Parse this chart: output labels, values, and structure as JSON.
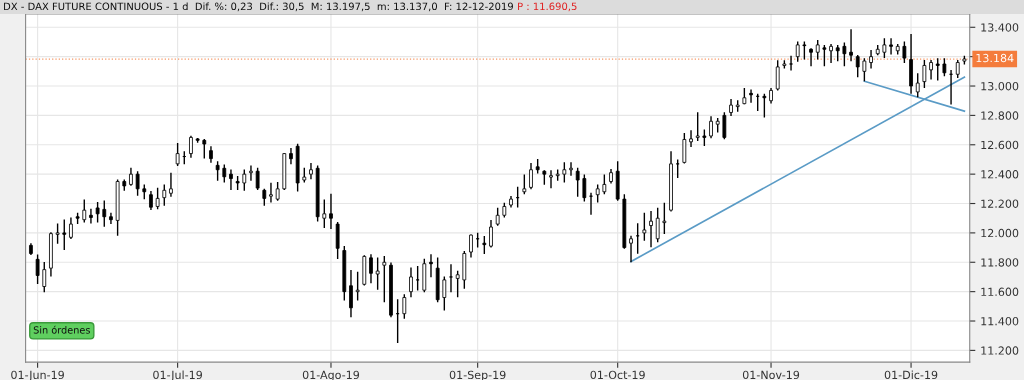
{
  "chart_data": {
    "type": "candlestick",
    "title": "DX - DAX FUTURE CONTINUOUS - 1 d  Dif. %: 0,23  Dif.: 30,5  M: 13.197,5  m: 13.137,0  F: 12-12-2019",
    "subtitle": "P : 11.690,5",
    "color": "#000000",
    "categories": [
      null,
      "01-Jun-19",
      null,
      null,
      null,
      null,
      null,
      null,
      null,
      null,
      null,
      null,
      null,
      null,
      null,
      null,
      null,
      null,
      null,
      null,
      null,
      null,
      "01-Jul-19",
      null,
      null,
      null,
      null,
      null,
      null,
      null,
      null,
      null,
      null,
      null,
      null,
      null,
      null,
      null,
      null,
      null,
      null,
      null,
      null,
      null,
      null,
      "01-Ago-19",
      null,
      null,
      null,
      null,
      null,
      null,
      null,
      null,
      null,
      null,
      null,
      null,
      null,
      null,
      null,
      null,
      null,
      null,
      null,
      null,
      null,
      "01-Sep-19",
      null,
      null,
      null,
      null,
      null,
      null,
      null,
      null,
      null,
      null,
      null,
      null,
      null,
      null,
      null,
      null,
      null,
      null,
      null,
      null,
      "01-Oct-19",
      null,
      null,
      null,
      null,
      null,
      null,
      null,
      null,
      null,
      null,
      null,
      null,
      null,
      null,
      null,
      null,
      null,
      null,
      null,
      null,
      null,
      null,
      "01-Nov-19",
      null,
      null,
      null,
      null,
      null,
      null,
      null,
      null,
      null,
      null,
      null,
      null,
      null,
      null,
      null,
      null,
      null,
      null,
      null,
      null,
      "01-Dic-19",
      null,
      null,
      null,
      null,
      null,
      null,
      null,
      null
    ],
    "ohlc": [
      [
        11915,
        11925,
        11855,
        11860
      ],
      [
        11820,
        11849,
        11657,
        11710
      ],
      [
        11635,
        11797,
        11600,
        11750
      ],
      [
        11760,
        12000,
        11707,
        11995
      ],
      [
        11990,
        12060,
        11930,
        12000
      ],
      [
        12000,
        12087,
        11888,
        11990
      ],
      [
        11970,
        12100,
        11963,
        12060
      ],
      [
        12110,
        12132,
        12065,
        12100
      ],
      [
        12090,
        12223,
        12076,
        12155
      ],
      [
        12120,
        12160,
        12069,
        12105
      ],
      [
        12170,
        12205,
        12076,
        12130
      ],
      [
        12160,
        12216,
        12046,
        12110
      ],
      [
        12110,
        12132,
        12065,
        12090
      ],
      [
        12085,
        12359,
        11985,
        12350
      ],
      [
        12350,
        12359,
        12291,
        12320
      ],
      [
        12330,
        12438,
        12325,
        12400
      ],
      [
        12400,
        12415,
        12257,
        12300
      ],
      [
        12300,
        12325,
        12234,
        12280
      ],
      [
        12260,
        12280,
        12160,
        12175
      ],
      [
        12180,
        12302,
        12166,
        12235
      ],
      [
        12240,
        12325,
        12189,
        12290
      ],
      [
        12270,
        12404,
        12250,
        12300
      ],
      [
        12470,
        12608,
        12460,
        12540
      ],
      [
        12520,
        12551,
        12472,
        12520
      ],
      [
        12540,
        12657,
        12517,
        12650
      ],
      [
        12640,
        12641,
        12619,
        12630
      ],
      [
        12630,
        12635,
        12512,
        12605
      ],
      [
        12560,
        12585,
        12483,
        12506
      ],
      [
        12460,
        12483,
        12359,
        12430
      ],
      [
        12440,
        12461,
        12348,
        12382
      ],
      [
        12400,
        12427,
        12296,
        12370
      ],
      [
        12350,
        12382,
        12296,
        12340
      ],
      [
        12340,
        12427,
        12291,
        12400
      ],
      [
        12410,
        12454,
        12359,
        12420
      ],
      [
        12420,
        12438,
        12296,
        12305
      ],
      [
        12290,
        12296,
        12189,
        12235
      ],
      [
        12250,
        12336,
        12212,
        12260
      ],
      [
        12230,
        12341,
        12223,
        12300
      ],
      [
        12300,
        12540,
        12296,
        12540
      ],
      [
        12540,
        12574,
        12472,
        12505
      ],
      [
        12590,
        12603,
        12286,
        12340
      ],
      [
        12360,
        12438,
        12348,
        12380
      ],
      [
        12400,
        12472,
        12370,
        12430
      ],
      [
        12440,
        12454,
        12083,
        12110
      ],
      [
        12100,
        12223,
        12038,
        12130
      ],
      [
        12130,
        12262,
        12031,
        12100
      ],
      [
        12060,
        12069,
        11827,
        11895
      ],
      [
        11880,
        11906,
        11544,
        11600
      ],
      [
        11640,
        11743,
        11431,
        11490
      ],
      [
        11600,
        11730,
        11544,
        11610
      ],
      [
        11650,
        11843,
        11646,
        11840
      ],
      [
        11830,
        11850,
        11662,
        11725
      ],
      [
        11720,
        11827,
        11617,
        11740
      ],
      [
        11780,
        11838,
        11533,
        11800
      ],
      [
        11780,
        11793,
        11431,
        11440
      ],
      [
        11450,
        11544,
        11255,
        11450
      ],
      [
        11450,
        11578,
        11420,
        11560
      ],
      [
        11600,
        11759,
        11567,
        11700
      ],
      [
        11680,
        11770,
        11612,
        11680
      ],
      [
        11610,
        11820,
        11601,
        11790
      ],
      [
        11800,
        11850,
        11703,
        11790
      ],
      [
        11760,
        11827,
        11533,
        11545
      ],
      [
        11560,
        11698,
        11476,
        11680
      ],
      [
        11700,
        11782,
        11601,
        11700
      ],
      [
        11690,
        11737,
        11567,
        11715
      ],
      [
        11680,
        11872,
        11624,
        11860
      ],
      [
        11870,
        11985,
        11838,
        11985
      ],
      [
        11960,
        11997,
        11906,
        11960
      ],
      [
        11930,
        11974,
        11861,
        11920
      ],
      [
        11910,
        12083,
        11906,
        12040
      ],
      [
        12060,
        12167,
        12053,
        12120
      ],
      [
        12120,
        12200,
        12110,
        12180
      ],
      [
        12190,
        12246,
        12178,
        12230
      ],
      [
        12240,
        12309,
        12178,
        12240
      ],
      [
        12280,
        12393,
        12268,
        12300
      ],
      [
        12310,
        12472,
        12302,
        12430
      ],
      [
        12450,
        12499,
        12409,
        12430
      ],
      [
        12420,
        12422,
        12332,
        12400
      ],
      [
        12380,
        12422,
        12309,
        12390
      ],
      [
        12390,
        12427,
        12359,
        12400
      ],
      [
        12400,
        12477,
        12348,
        12430
      ],
      [
        12430,
        12477,
        12393,
        12440
      ],
      [
        12420,
        12438,
        12250,
        12360
      ],
      [
        12370,
        12393,
        12219,
        12240
      ],
      [
        12250,
        12268,
        12128,
        12250
      ],
      [
        12260,
        12325,
        12212,
        12300
      ],
      [
        12280,
        12393,
        12268,
        12330
      ],
      [
        12350,
        12431,
        12341,
        12410
      ],
      [
        12420,
        12483,
        12223,
        12230
      ],
      [
        12230,
        12258,
        11896,
        11900
      ],
      [
        11930,
        11975,
        11805,
        11960
      ],
      [
        11980,
        12061,
        11862,
        11980
      ],
      [
        12000,
        12133,
        11952,
        12020
      ],
      [
        12050,
        12145,
        11907,
        12080
      ],
      [
        11960,
        12167,
        11941,
        12100
      ],
      [
        12070,
        12201,
        11997,
        12080
      ],
      [
        12155,
        12552,
        12151,
        12470
      ],
      [
        12470,
        12495,
        12378,
        12470
      ],
      [
        12480,
        12676,
        12477,
        12636
      ],
      [
        12620,
        12694,
        12590,
        12640
      ],
      [
        12650,
        12817,
        12631,
        12660
      ],
      [
        12660,
        12699,
        12597,
        12650
      ],
      [
        12660,
        12790,
        12649,
        12760
      ],
      [
        12740,
        12778,
        12688,
        12760
      ],
      [
        12800,
        12817,
        12642,
        12650
      ],
      [
        12820,
        12907,
        12801,
        12870
      ],
      [
        12860,
        12898,
        12830,
        12870
      ],
      [
        12880,
        12982,
        12880,
        12920
      ],
      [
        12950,
        12971,
        12891,
        12940
      ],
      [
        12930,
        12943,
        12835,
        12930
      ],
      [
        12930,
        12943,
        12790,
        12920
      ],
      [
        12900,
        12982,
        12885,
        12970
      ],
      [
        12980,
        13170,
        12975,
        13130
      ],
      [
        13140,
        13170,
        13124,
        13150
      ],
      [
        13150,
        13201,
        13111,
        13150
      ],
      [
        13200,
        13299,
        13170,
        13280
      ],
      [
        13280,
        13298,
        13185,
        13275
      ],
      [
        13250,
        13253,
        13140,
        13230
      ],
      [
        13230,
        13309,
        13185,
        13280
      ],
      [
        13260,
        13275,
        13140,
        13250
      ],
      [
        13240,
        13282,
        13162,
        13270
      ],
      [
        13260,
        13275,
        13173,
        13240
      ],
      [
        13270,
        13291,
        13140,
        13220
      ],
      [
        13230,
        13382,
        13173,
        13210
      ],
      [
        13200,
        13207,
        13065,
        13130
      ],
      [
        13100,
        13185,
        13038,
        13170
      ],
      [
        13160,
        13241,
        13124,
        13200
      ],
      [
        13220,
        13275,
        13214,
        13250
      ],
      [
        13230,
        13320,
        13196,
        13280
      ],
      [
        13280,
        13320,
        13219,
        13270
      ],
      [
        13240,
        13282,
        13219,
        13270
      ],
      [
        13270,
        13298,
        13162,
        13190
      ],
      [
        13180,
        13350,
        12952,
        13000
      ],
      [
        12960,
        13083,
        12929,
        13020
      ],
      [
        13030,
        13173,
        12992,
        13140
      ],
      [
        13110,
        13173,
        13049,
        13160
      ],
      [
        13150,
        13185,
        13042,
        13140
      ],
      [
        13150,
        13185,
        13072,
        13090
      ],
      [
        13080,
        13105,
        12879,
        13080
      ],
      [
        13080,
        13173,
        13060,
        13160
      ],
      [
        13170,
        13201,
        13151,
        13184
      ]
    ],
    "series": [
      {
        "type": "line",
        "color": "#5a9bc6",
        "values": [
          null,
          null,
          null,
          null,
          null,
          null,
          null,
          null,
          null,
          null,
          null,
          null,
          null,
          null,
          null,
          null,
          null,
          null,
          null,
          null,
          null,
          null,
          null,
          null,
          null,
          null,
          null,
          null,
          null,
          null,
          null,
          null,
          null,
          null,
          null,
          null,
          null,
          null,
          null,
          null,
          null,
          null,
          null,
          null,
          null,
          null,
          null,
          null,
          null,
          null,
          null,
          null,
          null,
          null,
          null,
          null,
          null,
          null,
          null,
          null,
          null,
          null,
          null,
          null,
          null,
          null,
          null,
          null,
          null,
          null,
          null,
          null,
          null,
          null,
          null,
          null,
          null,
          null,
          null,
          null,
          null,
          null,
          null,
          null,
          null,
          null,
          null,
          null,
          null,
          null,
          11805,
          null,
          null,
          null,
          null,
          null,
          null,
          null,
          null,
          null,
          null,
          null,
          null,
          null,
          null,
          null,
          null,
          null,
          null,
          null,
          null,
          null,
          null,
          null,
          null,
          null,
          null,
          null,
          null,
          null,
          null,
          null,
          null,
          null,
          null,
          null,
          null,
          null,
          null,
          null,
          null,
          null,
          null,
          null,
          null,
          null,
          null,
          null,
          null,
          null,
          13060
        ]
      },
      {
        "type": "line",
        "color": "#5a9bc6",
        "values": [
          null,
          null,
          null,
          null,
          null,
          null,
          null,
          null,
          null,
          null,
          null,
          null,
          null,
          null,
          null,
          null,
          null,
          null,
          null,
          null,
          null,
          null,
          null,
          null,
          null,
          null,
          null,
          null,
          null,
          null,
          null,
          null,
          null,
          null,
          null,
          null,
          null,
          null,
          null,
          null,
          null,
          null,
          null,
          null,
          null,
          null,
          null,
          null,
          null,
          null,
          null,
          null,
          null,
          null,
          null,
          null,
          null,
          null,
          null,
          null,
          null,
          null,
          null,
          null,
          null,
          null,
          null,
          null,
          null,
          null,
          null,
          null,
          null,
          null,
          null,
          null,
          null,
          null,
          null,
          null,
          null,
          null,
          null,
          null,
          null,
          null,
          null,
          null,
          null,
          null,
          null,
          null,
          null,
          null,
          null,
          null,
          null,
          null,
          null,
          null,
          null,
          null,
          null,
          null,
          null,
          null,
          null,
          null,
          null,
          null,
          null,
          null,
          null,
          null,
          null,
          null,
          null,
          null,
          null,
          null,
          null,
          null,
          null,
          null,
          null,
          13033,
          null,
          null,
          null,
          null,
          null,
          null,
          null,
          null,
          null,
          null,
          null,
          null,
          null,
          null,
          12829
        ]
      }
    ],
    "ylim": [
      11120,
      13490
    ],
    "yticks": [
      {
        "value": 11200,
        "label": "11.200"
      },
      {
        "value": 11400,
        "label": "11.400"
      },
      {
        "value": 11600,
        "label": "11.600"
      },
      {
        "value": 11800,
        "label": "11.800"
      },
      {
        "value": 12000,
        "label": "12.000"
      },
      {
        "value": 12200,
        "label": "12.200"
      },
      {
        "value": 12400,
        "label": "12.400"
      },
      {
        "value": 12600,
        "label": "12.600"
      },
      {
        "value": 12800,
        "label": "12.800"
      },
      {
        "value": 13000,
        "label": "13.000"
      },
      {
        "value": 13200,
        "label": null
      },
      {
        "value": 13400,
        "label": "13.400"
      }
    ],
    "grid": true,
    "ref_lines": [
      {
        "axis": "y",
        "value": 13184,
        "label": "13.184",
        "color": "#f47c3c",
        "line_style": "dotted"
      }
    ],
    "annotations": [
      "Sin órdenes"
    ]
  }
}
